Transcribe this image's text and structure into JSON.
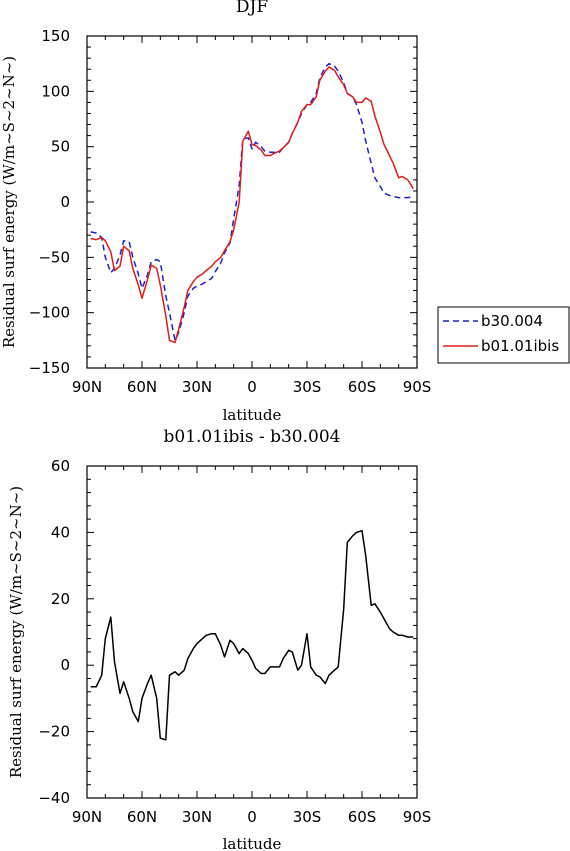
{
  "chart_data": [
    {
      "type": "line",
      "title": "DJF",
      "xlabel": "latitude",
      "ylabel": "Residual surf energy (W/m~S~2~N~)",
      "xlim": [
        90,
        -90
      ],
      "ylim": [
        -150,
        150
      ],
      "x_ticks": [
        {
          "v": 90,
          "label": "90N"
        },
        {
          "v": 60,
          "label": "60N"
        },
        {
          "v": 30,
          "label": "30N"
        },
        {
          "v": 0,
          "label": "0"
        },
        {
          "v": -30,
          "label": "30S"
        },
        {
          "v": -60,
          "label": "60S"
        },
        {
          "v": -90,
          "label": "90S"
        }
      ],
      "y_ticks": [
        -150,
        -100,
        -50,
        0,
        50,
        100,
        150
      ],
      "legend": "outside-right",
      "series": [
        {
          "name": "b30.004",
          "color": "#1f1fd6",
          "dash": "dashed",
          "x": [
            88,
            85,
            82,
            80,
            77,
            75,
            72,
            70,
            67,
            65,
            62,
            60,
            57,
            55,
            52,
            50,
            47,
            45,
            42,
            40,
            37,
            35,
            32,
            30,
            27,
            25,
            22,
            20,
            17,
            15,
            12,
            10,
            7,
            5,
            2,
            0,
            -2,
            -5,
            -7,
            -10,
            -12,
            -15,
            -17,
            -20,
            -22,
            -25,
            -27,
            -30,
            -32,
            -35,
            -37,
            -40,
            -42,
            -45,
            -47,
            -50,
            -52,
            -55,
            -57,
            -60,
            -62,
            -65,
            -67,
            -70,
            -72,
            -75,
            -77,
            -80,
            -82,
            -85,
            -88
          ],
          "y": [
            -27,
            -28,
            -32,
            -50,
            -64,
            -60,
            -48,
            -35,
            -36,
            -50,
            -65,
            -78,
            -66,
            -54,
            -52,
            -54,
            -85,
            -100,
            -125,
            -118,
            -100,
            -85,
            -78,
            -76,
            -74,
            -72,
            -69,
            -63,
            -55,
            -46,
            -37,
            -15,
            15,
            57,
            58,
            48,
            54,
            50,
            46,
            45,
            45,
            45,
            49,
            54,
            62,
            72,
            80,
            88,
            90,
            98,
            112,
            122,
            125,
            123,
            118,
            108,
            98,
            95,
            88,
            72,
            55,
            35,
            22,
            14,
            8,
            6,
            5,
            4,
            4,
            4,
            5
          ]
        },
        {
          "name": "b01.01ibis",
          "color": "#e21b1b",
          "dash": "solid",
          "x": [
            88,
            85,
            82,
            80,
            77,
            75,
            72,
            70,
            67,
            65,
            62,
            60,
            57,
            55,
            52,
            50,
            47,
            45,
            42,
            40,
            37,
            35,
            32,
            30,
            27,
            25,
            22,
            20,
            17,
            15,
            12,
            10,
            7,
            5,
            2,
            0,
            -2,
            -5,
            -7,
            -10,
            -12,
            -15,
            -17,
            -20,
            -22,
            -25,
            -27,
            -30,
            -32,
            -35,
            -37,
            -40,
            -42,
            -45,
            -47,
            -50,
            -52,
            -55,
            -57,
            -60,
            -62,
            -65,
            -67,
            -70,
            -72,
            -75,
            -77,
            -80,
            -82,
            -85,
            -88
          ],
          "y": [
            -33,
            -34,
            -32,
            -35,
            -45,
            -62,
            -58,
            -40,
            -44,
            -60,
            -75,
            -87,
            -70,
            -57,
            -60,
            -75,
            -103,
            -125,
            -127,
            -115,
            -95,
            -80,
            -72,
            -68,
            -65,
            -62,
            -58,
            -54,
            -50,
            -44,
            -36,
            -25,
            0,
            55,
            64,
            52,
            51,
            47,
            42,
            42,
            44,
            46,
            49,
            54,
            62,
            72,
            82,
            88,
            88,
            95,
            110,
            118,
            122,
            119,
            113,
            106,
            98,
            95,
            90,
            90,
            94,
            91,
            78,
            63,
            52,
            42,
            35,
            22,
            23,
            20,
            12
          ]
        }
      ]
    },
    {
      "type": "line",
      "title": "b01.01ibis - b30.004",
      "xlabel": "latitude",
      "ylabel": "Residual surf energy (W/m~S~2~N~)",
      "xlim": [
        90,
        -90
      ],
      "ylim": [
        -40,
        60
      ],
      "x_ticks": [
        {
          "v": 90,
          "label": "90N"
        },
        {
          "v": 60,
          "label": "60N"
        },
        {
          "v": 30,
          "label": "30N"
        },
        {
          "v": 0,
          "label": "0"
        },
        {
          "v": -30,
          "label": "30S"
        },
        {
          "v": -60,
          "label": "60S"
        },
        {
          "v": -90,
          "label": "90S"
        }
      ],
      "y_ticks": [
        -40,
        -20,
        0,
        20,
        40,
        60
      ],
      "series": [
        {
          "color": "#000000",
          "x": [
            88,
            85,
            82,
            80,
            77,
            75,
            72,
            70,
            67,
            65,
            62,
            60,
            57,
            55,
            52,
            50,
            47,
            45,
            42,
            40,
            37,
            35,
            32,
            30,
            27,
            25,
            22,
            20,
            17,
            15,
            12,
            10,
            7,
            5,
            2,
            0,
            -2,
            -5,
            -7,
            -10,
            -12,
            -15,
            -17,
            -20,
            -22,
            -25,
            -27,
            -30,
            -32,
            -35,
            -37,
            -40,
            -42,
            -45,
            -47,
            -50,
            -52,
            -55,
            -57,
            -60,
            -62,
            -65,
            -67,
            -70,
            -72,
            -75,
            -77,
            -80,
            -82,
            -85,
            -88
          ],
          "y": [
            -6.5,
            -6.5,
            -3,
            8,
            14.5,
            1,
            -8.5,
            -5,
            -10,
            -14,
            -17,
            -10,
            -5.5,
            -3,
            -10,
            -22,
            -22.5,
            -3,
            -2,
            -3,
            -1.5,
            2,
            5,
            6.5,
            8,
            9,
            9.5,
            9.5,
            6,
            2.5,
            7.5,
            6.5,
            3.5,
            5,
            3.5,
            1.5,
            -1,
            -2.5,
            -2.5,
            -0.5,
            -0.5,
            -0.5,
            2,
            4.5,
            4,
            -1.5,
            0,
            9.5,
            -0.5,
            -3,
            -3.5,
            -5.5,
            -3,
            -1.5,
            -0.5,
            17,
            37,
            39,
            40,
            40.5,
            33,
            18,
            18.5,
            16,
            14,
            11,
            10,
            9,
            9,
            8.5,
            8.5
          ]
        }
      ]
    }
  ]
}
